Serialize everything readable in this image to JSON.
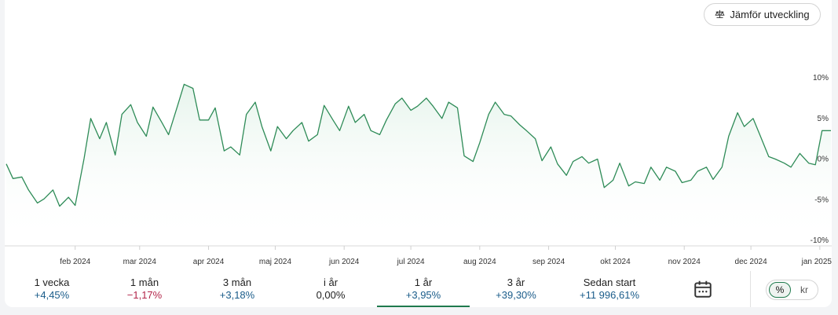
{
  "compare_button": {
    "label": "Jämför utveckling",
    "icon": "scale-icon"
  },
  "colors": {
    "line": "#2e8b57",
    "fill": "#e6f4ec",
    "positive": "#1a5c8a",
    "negative": "#b3264a",
    "active_tab": "#1f7a4d"
  },
  "chart_data": {
    "type": "area",
    "title": "",
    "xlabel": "",
    "ylabel": "",
    "y_unit": "%",
    "ylim": [
      -10,
      10
    ],
    "yticks": [
      10,
      5,
      0,
      -5,
      -10
    ],
    "ytick_labels": [
      "10%",
      "5%",
      "0%",
      "-5%",
      "-10%"
    ],
    "xlim": [
      "2024-01-01",
      "2025-01-06"
    ],
    "xticks": [
      "2024-02-01",
      "2024-03-01",
      "2024-04-01",
      "2024-05-01",
      "2024-06-01",
      "2024-07-01",
      "2024-08-01",
      "2024-09-01",
      "2024-10-01",
      "2024-11-01",
      "2024-12-01",
      "2025-01-01"
    ],
    "xtick_labels": [
      "feb 2024",
      "mar 2024",
      "apr 2024",
      "maj 2024",
      "jun 2024",
      "jul 2024",
      "aug 2024",
      "sep 2024",
      "okt 2024",
      "nov 2024",
      "dec 2024",
      "jan 2025"
    ],
    "grid": false,
    "legend": "none",
    "series": [
      {
        "x": [
          "2024-01-01",
          "2024-01-04",
          "2024-01-08",
          "2024-01-11",
          "2024-01-15",
          "2024-01-18",
          "2024-01-22",
          "2024-01-25",
          "2024-01-29",
          "2024-02-01",
          "2024-02-05",
          "2024-02-08",
          "2024-02-12",
          "2024-02-15",
          "2024-02-19",
          "2024-02-22",
          "2024-02-26",
          "2024-02-29",
          "2024-03-04",
          "2024-03-07",
          "2024-03-11",
          "2024-03-14",
          "2024-03-18",
          "2024-03-21",
          "2024-03-25",
          "2024-03-28",
          "2024-04-01",
          "2024-04-04",
          "2024-04-08",
          "2024-04-11",
          "2024-04-15",
          "2024-04-18",
          "2024-04-22",
          "2024-04-25",
          "2024-04-29",
          "2024-05-02",
          "2024-05-06",
          "2024-05-09",
          "2024-05-13",
          "2024-05-16",
          "2024-05-20",
          "2024-05-23",
          "2024-05-27",
          "2024-05-30",
          "2024-06-03",
          "2024-06-06",
          "2024-06-10",
          "2024-06-13",
          "2024-06-17",
          "2024-06-20",
          "2024-06-24",
          "2024-06-27",
          "2024-07-01",
          "2024-07-04",
          "2024-07-08",
          "2024-07-11",
          "2024-07-15",
          "2024-07-18",
          "2024-07-22",
          "2024-07-25",
          "2024-07-29",
          "2024-08-01",
          "2024-08-05",
          "2024-08-08",
          "2024-08-12",
          "2024-08-15",
          "2024-08-19",
          "2024-08-22",
          "2024-08-26",
          "2024-08-29",
          "2024-09-02",
          "2024-09-05",
          "2024-09-09",
          "2024-09-12",
          "2024-09-16",
          "2024-09-19",
          "2024-09-23",
          "2024-09-26",
          "2024-09-30",
          "2024-10-03",
          "2024-10-07",
          "2024-10-10",
          "2024-10-14",
          "2024-10-17",
          "2024-10-21",
          "2024-10-24",
          "2024-10-28",
          "2024-10-31",
          "2024-11-04",
          "2024-11-07",
          "2024-11-11",
          "2024-11-14",
          "2024-11-18",
          "2024-11-21",
          "2024-11-25",
          "2024-11-28",
          "2024-12-02",
          "2024-12-05",
          "2024-12-09",
          "2024-12-12",
          "2024-12-16",
          "2024-12-19",
          "2024-12-23",
          "2024-12-27",
          "2024-12-30",
          "2025-01-02",
          "2025-01-06"
        ],
        "y": [
          -0.6,
          -2.4,
          -2.2,
          -3.8,
          -5.4,
          -4.9,
          -3.8,
          -5.8,
          -4.7,
          -5.7,
          0.1,
          5.0,
          2.5,
          4.5,
          0.5,
          5.5,
          6.7,
          4.5,
          2.8,
          6.4,
          4.5,
          3.0,
          6.5,
          9.2,
          8.7,
          4.8,
          4.8,
          6.3,
          1.0,
          1.5,
          0.5,
          5.5,
          7.0,
          4.0,
          1.0,
          4.0,
          2.5,
          3.5,
          4.5,
          2.2,
          3.0,
          6.6,
          4.8,
          3.5,
          6.5,
          4.5,
          5.5,
          3.5,
          3.0,
          4.8,
          6.8,
          7.5,
          6.0,
          6.5,
          7.5,
          6.5,
          5.0,
          7.0,
          6.3,
          0.4,
          -0.3,
          2.0,
          5.5,
          7.0,
          5.5,
          5.3,
          4.2,
          3.5,
          2.5,
          -0.2,
          1.5,
          -0.6,
          -2.0,
          -0.3,
          0.3,
          -0.5,
          0.0,
          -3.5,
          -2.6,
          -0.5,
          -3.3,
          -2.8,
          -3.0,
          -1.0,
          -2.6,
          -1.0,
          -1.5,
          -2.9,
          -2.6,
          -1.5,
          -1.0,
          -2.5,
          -1.0,
          2.8,
          5.7,
          4.0,
          5.0,
          3.0,
          0.3,
          0.0,
          -0.5,
          -1.0,
          0.7,
          -0.5,
          -0.7,
          3.5,
          3.5
        ]
      }
    ]
  },
  "periods": [
    {
      "label": "1 vecka",
      "value": "+4,45%",
      "sign": "pos"
    },
    {
      "label": "1 mån",
      "value": "−1,17%",
      "sign": "neg"
    },
    {
      "label": "3 mån",
      "value": "+3,18%",
      "sign": "pos"
    },
    {
      "label": "i år",
      "value": "0,00%",
      "sign": "neu"
    },
    {
      "label": "1 år",
      "value": "+3,95%",
      "sign": "pos",
      "active": true
    },
    {
      "label": "3 år",
      "value": "+39,30%",
      "sign": "pos"
    },
    {
      "label": "Sedan start",
      "value": "+11 996,61%",
      "sign": "pos"
    }
  ],
  "calendar_button": {
    "icon": "calendar-icon"
  },
  "unit_toggle": {
    "options": [
      "%",
      "kr"
    ],
    "selected": "%"
  }
}
